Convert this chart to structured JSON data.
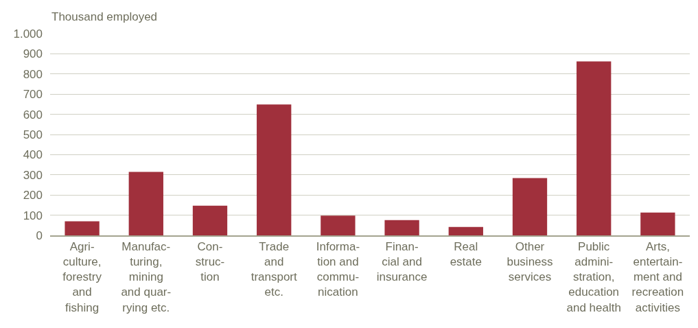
{
  "chart_data": {
    "type": "bar",
    "ylabel": "Thousand employed",
    "categories": [
      "Agri-\nculture,\nforestry\nand\nfishing",
      "Manufac-\nturing,\nmining\nand quar-\nrying etc.",
      "Con-\nstruc-\ntion",
      "Trade\nand\ntransport\netc.",
      "Informa-\ntion and\ncommu-\nnication",
      "Finan-\ncial and\ninsurance",
      "Real\nestate",
      "Other\nbusiness\nservices",
      "Public\nadmini-\nstration,\neducation\nand health",
      "Arts,\nentertain-\nment and\nrecreation\nactivities"
    ],
    "values": [
      70,
      315,
      147,
      649,
      98,
      76,
      42,
      284,
      862,
      113
    ],
    "color": "#a0303c",
    "ylim": [
      0,
      1000
    ],
    "yticks": [
      0,
      100,
      200,
      300,
      400,
      500,
      600,
      700,
      800,
      900,
      {
        "value": 1000,
        "label": "1.000"
      }
    ],
    "grid": "y"
  }
}
